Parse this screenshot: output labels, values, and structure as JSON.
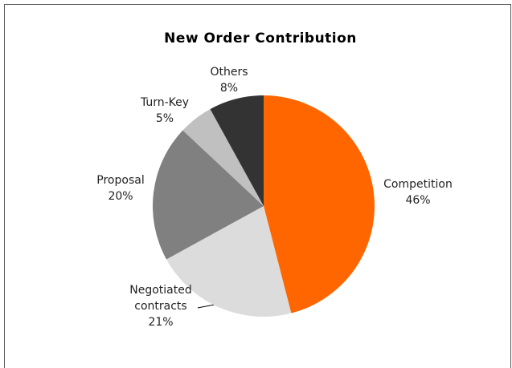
{
  "chart_data": {
    "type": "pie",
    "title": "New Order Contribution",
    "categories": [
      "Competition",
      "Negotiated contracts",
      "Proposal",
      "Turn-Key",
      "Others"
    ],
    "values": [
      46,
      21,
      20,
      5,
      8
    ],
    "value_labels": [
      "46%",
      "21%",
      "20%",
      "5%",
      "8%"
    ],
    "colors": [
      "#ff6600",
      "#dcdcdc",
      "#808080",
      "#c0c0c0",
      "#333333"
    ]
  }
}
